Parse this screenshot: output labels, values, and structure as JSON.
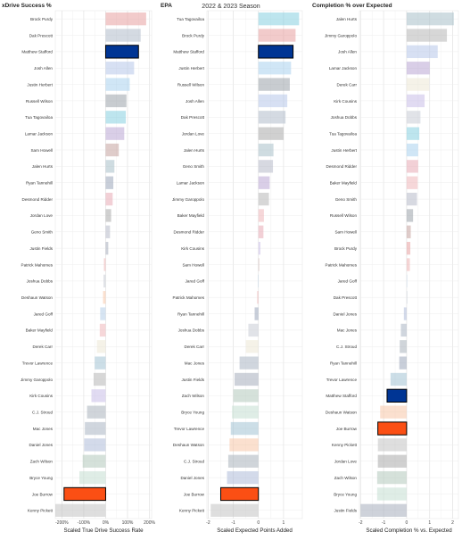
{
  "suptitle": "2022 & 2023 Season",
  "chart_data": [
    {
      "type": "bar",
      "orientation": "horizontal",
      "title": "xDrive Success %",
      "xlabel": "Scaled True Drive Success Rate",
      "xlim": [
        -2.3,
        2.1
      ],
      "xticks": [
        -2,
        -1,
        0,
        1,
        2
      ],
      "xtick_labels": [
        "-200%",
        "-100%",
        "0%",
        "100%",
        "200%"
      ],
      "grid": true,
      "categories": [
        "Brock Purdy",
        "Dak Prescott",
        "Matthew Stafford",
        "Josh Allen",
        "Justin Herbert",
        "Russell Wilson",
        "Tua Tagovailoa",
        "Lamar Jackson",
        "Sam Howell",
        "Jalen Hurts",
        "Ryan Tannehill",
        "Desmond Ridder",
        "Jordan Love",
        "Geno Smith",
        "Justin Fields",
        "Patrick Mahomes",
        "Joshua Dobbs",
        "Deshaun Watson",
        "Jared Goff",
        "Baker Mayfield",
        "Derek Carr",
        "Trevor Lawrence",
        "Jimmy Garoppolo",
        "Kirk Cousins",
        "C.J. Stroud",
        "Mac Jones",
        "Daniel Jones",
        "Zach Wilson",
        "Bryce Young",
        "Joe Burrow",
        "Kenny Pickett"
      ],
      "values": [
        1.85,
        1.6,
        1.5,
        1.3,
        1.1,
        0.95,
        0.92,
        0.85,
        0.6,
        0.4,
        0.35,
        0.32,
        0.25,
        0.2,
        0.12,
        -0.08,
        -0.1,
        -0.12,
        -0.25,
        -0.27,
        -0.4,
        -0.5,
        -0.55,
        -0.65,
        -0.85,
        -0.95,
        -0.98,
        -1.05,
        -1.2,
        -1.9,
        -2.3
      ],
      "colors": [
        "#e8a0a0",
        "#b0bccb",
        "#003594",
        "#b7c7e9",
        "#a9d2ef",
        "#9aa3aa",
        "#86cfe0",
        "#b9a5d3",
        "#c4a29e",
        "#a8c0c9",
        "#9aa6ba",
        "#e8a9b4",
        "#aaaaaa",
        "#b7b9c8",
        "#a6adbb",
        "#ecb3b3",
        "#c8ccd6",
        "#f7c6a8",
        "#b4cde7",
        "#efb7b9",
        "#ece7d5",
        "#a2c3d3",
        "#b7b7b7",
        "#c8bde8",
        "#aab2bc",
        "#aab4c2",
        "#aebcd8",
        "#b3c8bb",
        "#c4dfd2",
        "#fb4f14",
        "#c3c3c3"
      ],
      "highlight": [
        "Matthew Stafford",
        "Joe Burrow"
      ]
    },
    {
      "type": "bar",
      "orientation": "horizontal",
      "title": "EPA",
      "xlabel": "Scaled Expected Points Added",
      "xlim": [
        -2.05,
        1.75
      ],
      "xticks": [
        -2,
        -1,
        0,
        1
      ],
      "xtick_labels": [
        "-2",
        "-1",
        "0",
        "1"
      ],
      "grid": true,
      "categories": [
        "Tua Tagovailoa",
        "Brock Purdy",
        "Matthew Stafford",
        "Justin Herbert",
        "Russell Wilson",
        "Josh Allen",
        "Dak Prescott",
        "Jordan Love",
        "Jalen Hurts",
        "Geno Smith",
        "Lamar Jackson",
        "Jimmy Garoppolo",
        "Baker Mayfield",
        "Desmond Ridder",
        "Kirk Cousins",
        "Sam Howell",
        "Jared Goff",
        "Patrick Mahomes",
        "Ryan Tannehill",
        "Joshua Dobbs",
        "Derek Carr",
        "Mac Jones",
        "Justin Fields",
        "Zach Wilson",
        "Bryce Young",
        "Trevor Lawrence",
        "Deshaun Watson",
        "C.J. Stroud",
        "Daniel Jones",
        "Joe Burrow",
        "Kenny Pickett"
      ],
      "values": [
        1.62,
        1.48,
        1.38,
        1.3,
        1.25,
        1.15,
        1.08,
        1.0,
        0.6,
        0.58,
        0.45,
        0.42,
        0.22,
        0.2,
        0.08,
        0.03,
        -0.02,
        -0.05,
        -0.15,
        -0.4,
        -0.5,
        -0.75,
        -0.95,
        -1.0,
        -1.05,
        -1.1,
        -1.15,
        -1.2,
        -1.25,
        -1.5,
        -1.9
      ],
      "colors": [
        "#86cfe0",
        "#e8a0a0",
        "#003594",
        "#a9d2ef",
        "#9aa3aa",
        "#b7c7e9",
        "#b0bccb",
        "#aaaaaa",
        "#a8c0c9",
        "#b7b9c8",
        "#b9a5d3",
        "#b7b7b7",
        "#efb7b9",
        "#e8a9b4",
        "#c8bde8",
        "#c4a29e",
        "#b4cde7",
        "#ecb3b3",
        "#9aa6ba",
        "#c8ccd6",
        "#ece7d5",
        "#aab4c2",
        "#a6adbb",
        "#b3c8bb",
        "#c4dfd2",
        "#a2c3d3",
        "#f7c6a8",
        "#aab2bc",
        "#aebcd8",
        "#fb4f14",
        "#c3c3c3"
      ],
      "highlight": [
        "Matthew Stafford",
        "Joe Burrow"
      ]
    },
    {
      "type": "bar",
      "orientation": "horizontal",
      "title": "Completion % over Expected",
      "xlabel": "Scaled Completion % vs. Expected",
      "xlim": [
        -2.05,
        2.25
      ],
      "xticks": [
        -2,
        -1,
        0,
        1,
        2
      ],
      "xtick_labels": [
        "-2",
        "-1",
        "0",
        "1",
        "2"
      ],
      "grid": true,
      "categories": [
        "Jalen Hurts",
        "Jimmy Garoppolo",
        "Josh Allen",
        "Lamar Jackson",
        "Derek Carr",
        "Kirk Cousins",
        "Joshua Dobbs",
        "Tua Tagovailoa",
        "Justin Herbert",
        "Desmond Ridder",
        "Baker Mayfield",
        "Geno Smith",
        "Russell Wilson",
        "Sam Howell",
        "Brock Purdy",
        "Patrick Mahomes",
        "Jared Goff",
        "Dak Prescott",
        "Daniel Jones",
        "Mac Jones",
        "C.J. Stroud",
        "Ryan Tannehill",
        "Trevor Lawrence",
        "Matthew Stafford",
        "Deshaun Watson",
        "Joe Burrow",
        "Kenny Pickett",
        "Jordan Love",
        "Zach Wilson",
        "Bryce Young",
        "Justin Fields"
      ],
      "values": [
        2.05,
        1.75,
        1.35,
        1.0,
        0.98,
        0.78,
        0.6,
        0.55,
        0.5,
        0.5,
        0.48,
        0.45,
        0.28,
        0.18,
        0.16,
        0.14,
        0.0,
        0.0,
        -0.12,
        -0.25,
        -0.3,
        -0.32,
        -0.7,
        -0.85,
        -1.15,
        -1.25,
        -1.25,
        -1.25,
        -1.28,
        -1.28,
        -2.0
      ],
      "colors": [
        "#a8c0c9",
        "#b7b7b7",
        "#b7c7e9",
        "#b9a5d3",
        "#ece7d5",
        "#c8bde8",
        "#c8ccd6",
        "#86cfe0",
        "#a9d2ef",
        "#e8a9b4",
        "#efb7b9",
        "#b7b9c8",
        "#9aa3aa",
        "#c4a29e",
        "#e8a0a0",
        "#ecb3b3",
        "#b4cde7",
        "#b0bccb",
        "#aebcd8",
        "#aab4c2",
        "#aab2bc",
        "#9aa6ba",
        "#a2c3d3",
        "#003594",
        "#f7c6a8",
        "#fb4f14",
        "#c3c3c3",
        "#aaaaaa",
        "#b3c8bb",
        "#c4dfd2",
        "#a6adbb"
      ],
      "highlight": [
        "Matthew Stafford",
        "Joe Burrow"
      ]
    }
  ]
}
